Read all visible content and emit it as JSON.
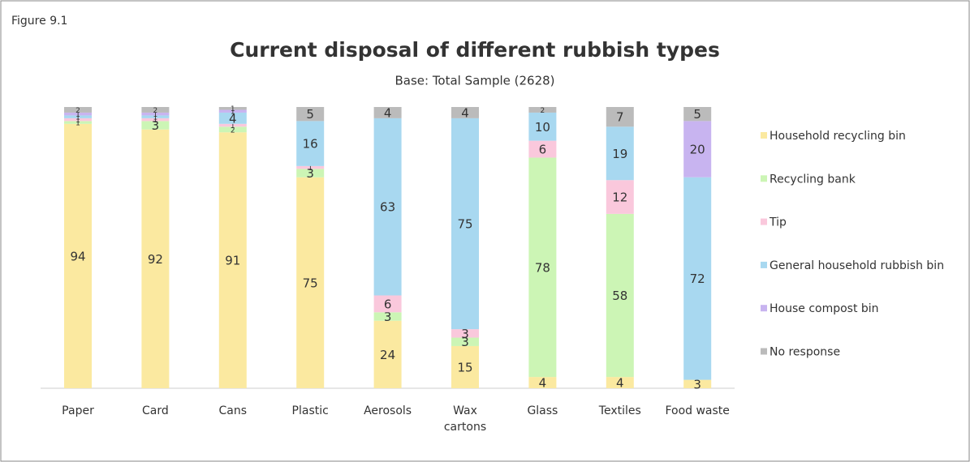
{
  "figure_label": "Figure 9.1",
  "chart_data": {
    "type": "stacked_bar",
    "title": "Current disposal of different rubbish types",
    "subtitle": "Base: Total Sample (2628)",
    "categories": [
      "Paper",
      "Card",
      "Cans",
      "Plastic",
      "Aerosols",
      "Wax cartons",
      "Glass",
      "Textiles",
      "Food waste"
    ],
    "ylim": [
      0,
      100
    ],
    "legend": "right",
    "series": [
      {
        "name": "Household recycling bin",
        "color": "#fbe9a0",
        "values": [
          94,
          92,
          91,
          75,
          24,
          15,
          4,
          4,
          3
        ]
      },
      {
        "name": "Recycling bank",
        "color": "#ccf5b5",
        "values": [
          1,
          3,
          2,
          3,
          3,
          3,
          78,
          58,
          0
        ]
      },
      {
        "name": "Tip",
        "color": "#fac8dc",
        "values": [
          1,
          1,
          1,
          1,
          6,
          3,
          6,
          12,
          0
        ]
      },
      {
        "name": "General household rubbish bin",
        "color": "#a8d8f0",
        "values": [
          1,
          1,
          4,
          16,
          63,
          75,
          10,
          19,
          72
        ]
      },
      {
        "name": "House compost bin",
        "color": "#c8b4f0",
        "values": [
          1,
          1,
          1,
          0,
          0,
          0,
          0,
          0,
          20
        ]
      },
      {
        "name": "No response",
        "color": "#bbbbbb",
        "values": [
          2,
          2,
          1,
          5,
          4,
          4,
          2,
          7,
          5
        ]
      }
    ]
  }
}
